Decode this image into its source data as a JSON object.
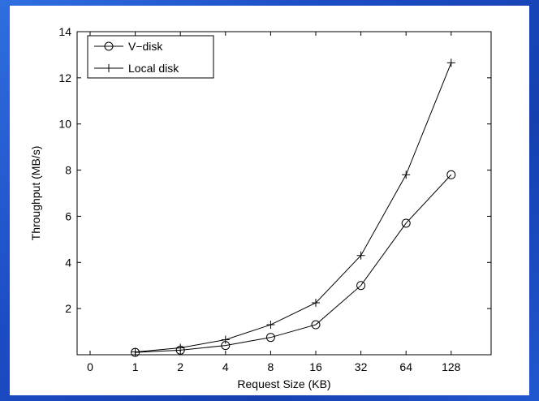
{
  "chart_data": {
    "type": "line",
    "xlabel": "Request Size (KB)",
    "ylabel": "Throughput (MB/s)",
    "x_tick_labels": [
      "0",
      "1",
      "2",
      "4",
      "8",
      "16",
      "32",
      "64",
      "128"
    ],
    "y_tick_labels": [
      "2",
      "4",
      "6",
      "8",
      "10",
      "12",
      "14"
    ],
    "y_ticks": [
      2,
      4,
      6,
      8,
      10,
      12,
      14
    ],
    "ylim": [
      0,
      14
    ],
    "x_scale": "log2",
    "x": [
      1,
      2,
      4,
      8,
      16,
      32,
      64,
      128
    ],
    "series": [
      {
        "name": "V−disk",
        "marker": "circle",
        "values": [
          0.1,
          0.2,
          0.4,
          0.75,
          1.3,
          3.0,
          5.7,
          7.8
        ]
      },
      {
        "name": "Local disk",
        "marker": "plus",
        "values": [
          0.12,
          0.3,
          0.65,
          1.3,
          2.25,
          4.3,
          7.8,
          12.65
        ]
      }
    ],
    "legend_position": "top-left",
    "grid": false,
    "line_color": "#000000"
  },
  "colors": {
    "background": "#1d4fc0",
    "plot_background": "#ffffff",
    "ink": "#000000"
  }
}
